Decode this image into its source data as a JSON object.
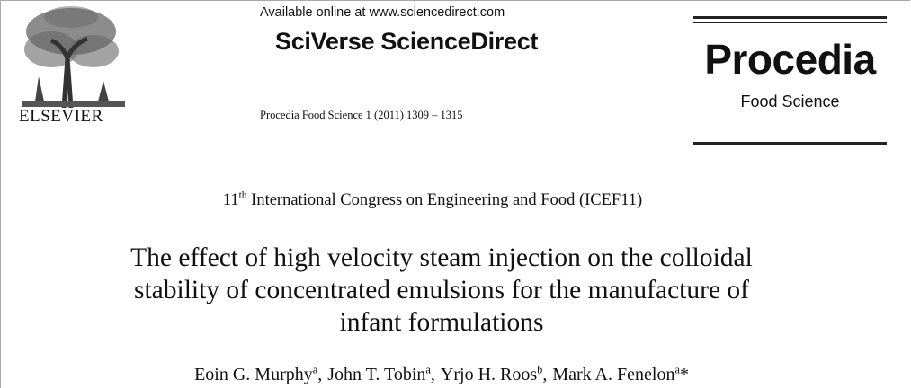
{
  "header": {
    "online": "Available online at www.sciencedirect.com",
    "brand": "SciVerse ScienceDirect",
    "publisher": "ELSEVIER",
    "citation": "Procedia Food Science 1 (2011) 1309 – 1315",
    "journal": "Procedia",
    "journal_sub": "Food Science"
  },
  "congress": {
    "number": "11",
    "sup": "th",
    "text": "International Congress on Engineering and Food (ICEF11)"
  },
  "title": [
    "The effect of high velocity steam injection on the colloidal",
    "stability of concentrated emulsions for the manufacture of",
    "infant formulations"
  ],
  "authors": {
    "separator": ",",
    "list": [
      {
        "name": "Eoin G. Murphy",
        "sup": "a"
      },
      {
        "name": "John T. Tobin",
        "sup": "a"
      },
      {
        "name": "Yrjo H. Roos",
        "sup": "b"
      },
      {
        "name": "Mark A. Fenelon",
        "sup": "a",
        "mark": "*"
      }
    ]
  }
}
